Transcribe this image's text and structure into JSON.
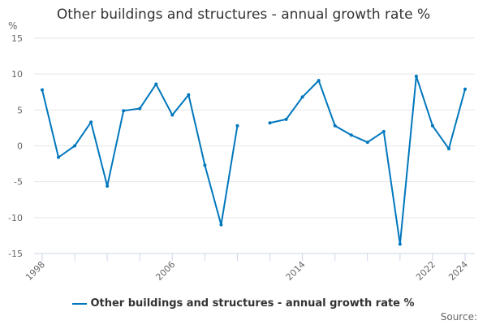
{
  "chart_data": {
    "type": "line",
    "title": "Other buildings and structures - annual growth rate %",
    "ylabel": "%",
    "xlabel": "",
    "ylim": [
      -15,
      15
    ],
    "yticks": [
      15,
      10,
      5,
      0,
      -5,
      -10,
      -15
    ],
    "xticks_labeled": [
      1998,
      2006,
      2014,
      2022,
      2024
    ],
    "grid": true,
    "legend_position": "bottom",
    "color": "#0077bd",
    "x": [
      1998,
      1999,
      2000,
      2001,
      2002,
      2003,
      2004,
      2005,
      2006,
      2007,
      2008,
      2009,
      2010,
      2011,
      2012,
      2013,
      2014,
      2015,
      2016,
      2017,
      2018,
      2019,
      2020,
      2021,
      2022,
      2023,
      2024
    ],
    "series": [
      {
        "name": "Other buildings and structures - annual growth rate %",
        "values": [
          7.8,
          -1.6,
          0.0,
          3.3,
          -5.6,
          4.9,
          5.2,
          8.6,
          4.3,
          7.1,
          -2.7,
          -11.0,
          2.8,
          null,
          3.2,
          3.7,
          6.8,
          9.1,
          2.8,
          1.5,
          0.5,
          2.0,
          -13.7,
          9.7,
          2.8,
          -0.4,
          7.9
        ]
      }
    ]
  },
  "source_label": "Source:"
}
